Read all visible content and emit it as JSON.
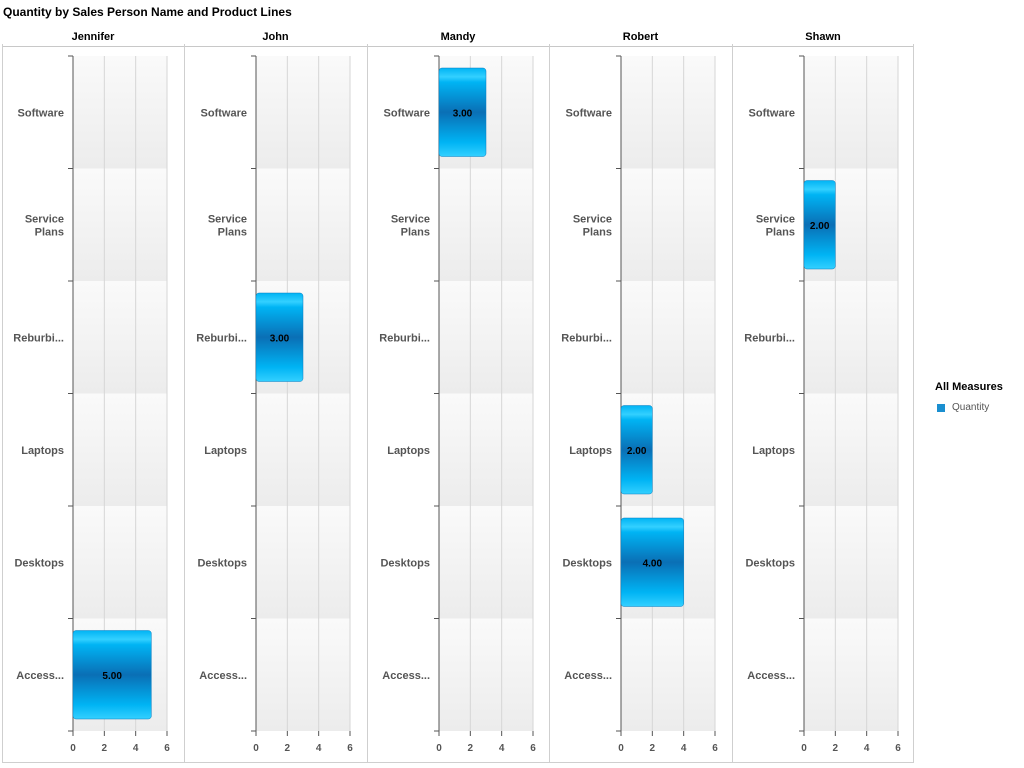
{
  "title": "Quantity by Sales Person Name and Product Lines",
  "legend": {
    "title": "All Measures",
    "items": [
      {
        "label": "Quantity",
        "color": "#1a8fd0"
      }
    ]
  },
  "colors": {
    "bar_light": "#33d0ff",
    "bar_mid": "#00b4f4",
    "bar_dark": "#0a6fb5",
    "grid": "#d6d6d6",
    "axis": "#555555",
    "row_light": "#fafafa",
    "row_dark": "#ececec",
    "category_text": "#555555"
  },
  "chart_data": {
    "type": "bar",
    "orientation": "horizontal",
    "measure": "Quantity",
    "facet_by": "Sales Person Name",
    "categories": [
      "Software",
      "Service Plans",
      "Reburbi...",
      "Laptops",
      "Desktops",
      "Access..."
    ],
    "category_lines": [
      [
        "Software"
      ],
      [
        "Service",
        "Plans"
      ],
      [
        "Reburbi..."
      ],
      [
        "Laptops"
      ],
      [
        "Desktops"
      ],
      [
        "Access..."
      ]
    ],
    "xlim": [
      0,
      6
    ],
    "xticks": [
      "0",
      "2",
      "4",
      "6"
    ],
    "panels": [
      {
        "name": "Jennifer",
        "values": [
          null,
          null,
          null,
          null,
          null,
          5
        ],
        "labels": [
          "",
          "",
          "",
          "",
          "",
          "5.00"
        ]
      },
      {
        "name": "John",
        "values": [
          null,
          null,
          3,
          null,
          null,
          null
        ],
        "labels": [
          "",
          "",
          "3.00",
          "",
          "",
          ""
        ]
      },
      {
        "name": "Mandy",
        "values": [
          3,
          null,
          null,
          null,
          null,
          null
        ],
        "labels": [
          "3.00",
          "",
          "",
          "",
          "",
          ""
        ]
      },
      {
        "name": "Robert",
        "values": [
          null,
          null,
          null,
          2,
          4,
          null
        ],
        "labels": [
          "",
          "",
          "",
          "2.00",
          "4.00",
          ""
        ]
      },
      {
        "name": "Shawn",
        "values": [
          null,
          2,
          null,
          null,
          null,
          null
        ],
        "labels": [
          "",
          "2.00",
          "",
          "",
          "",
          ""
        ]
      }
    ]
  }
}
